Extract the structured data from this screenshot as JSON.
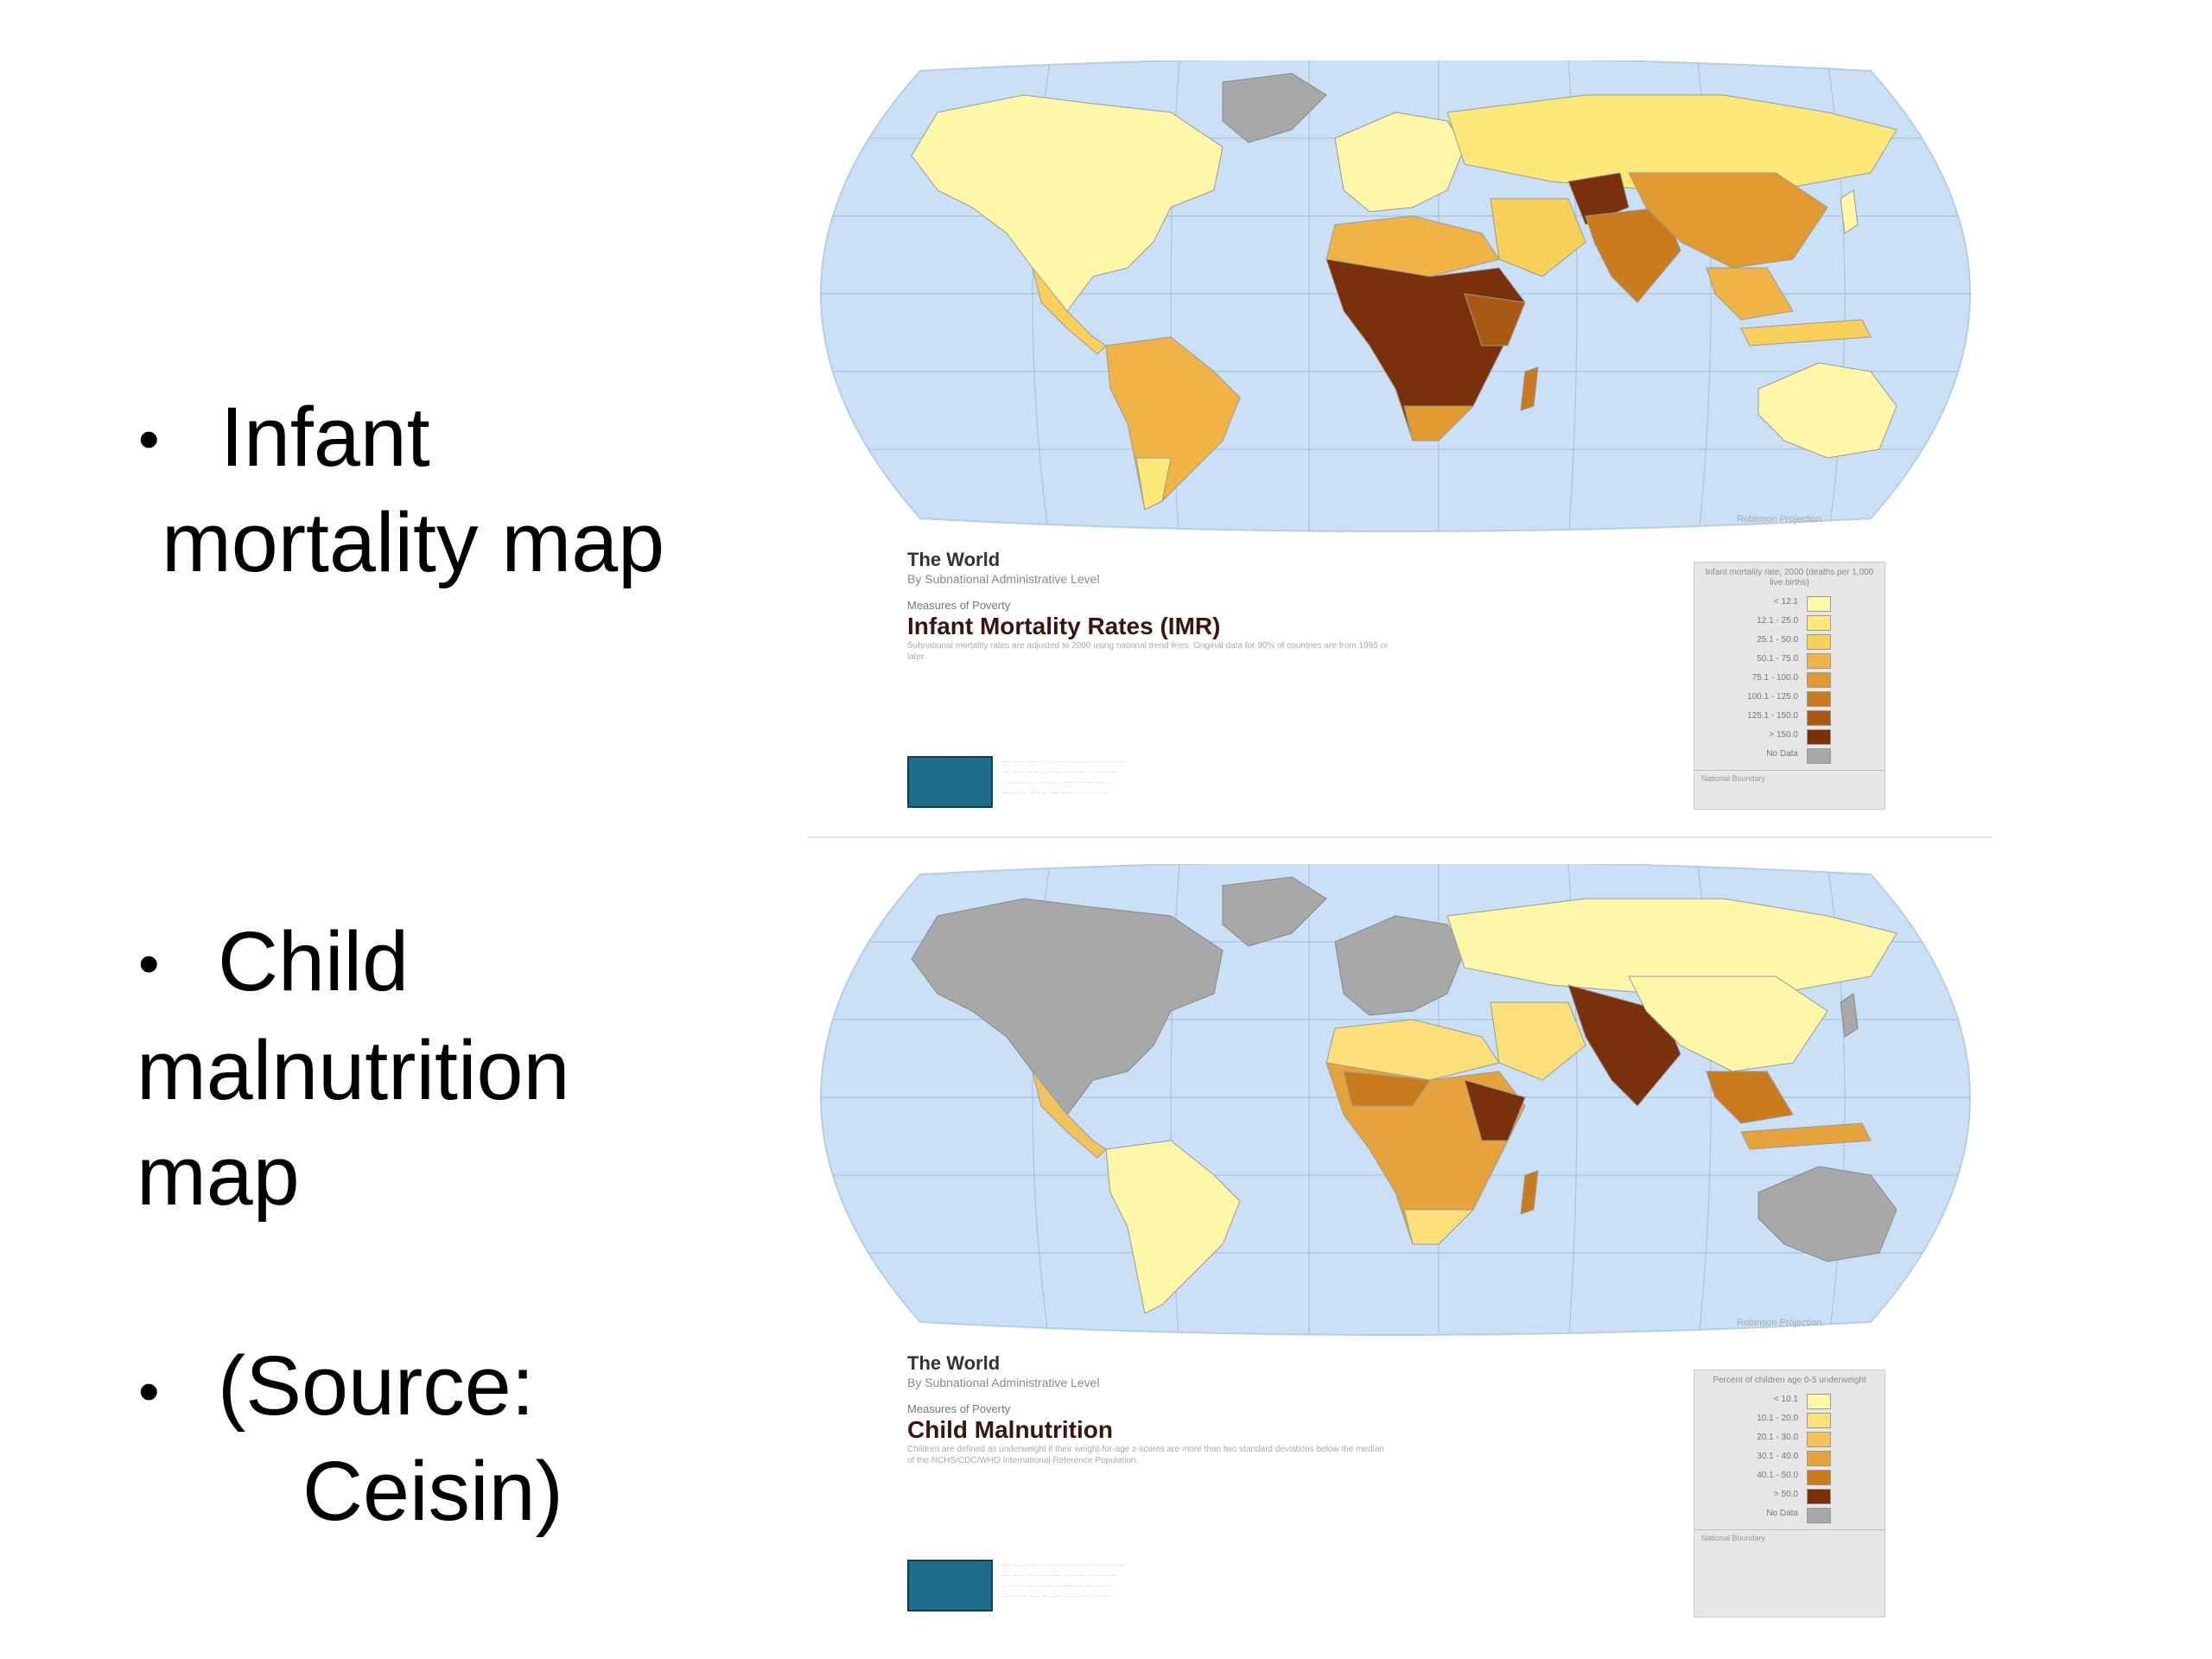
{
  "bullets": [
    {
      "line1": "Infant",
      "line2": " mortality map"
    },
    {
      "line1": "Child",
      "line2": "malnutrition",
      "line3": "map"
    },
    {
      "line1": "(Source:",
      "line2": "Ceisin)"
    }
  ],
  "maps": [
    {
      "projection": "Robinson Projection",
      "region": "The World",
      "subtitle": "By Subnational Administrative Level",
      "measure": "Measures of Poverty",
      "name": "Infant Mortality Rates (IMR)",
      "note": "Subnational mortality rates are adjusted to 2000 using national trend lines. Original data for 90% of countries are from 1995 or later.",
      "legend_title": "Infant mortality rate, 2000 (deaths per 1,000 live births)",
      "legend_items": [
        {
          "label": "< 12.1",
          "color": "#fff7a8"
        },
        {
          "label": "12.1 - 25.0",
          "color": "#fde97a"
        },
        {
          "label": "25.1 - 50.0",
          "color": "#f8d05a"
        },
        {
          "label": "50.1 - 75.0",
          "color": "#efb445"
        },
        {
          "label": "75.1 - 100.0",
          "color": "#e09a2f"
        },
        {
          "label": "100.1 - 125.0",
          "color": "#c97b1d"
        },
        {
          "label": "125.1 - 150.0",
          "color": "#a95913"
        },
        {
          "label": "> 150.0",
          "color": "#7a300a"
        },
        {
          "label": "No Data",
          "color": "#a8a8a8"
        }
      ],
      "legend_footer": "National Boundary",
      "colors": {
        "ocean": "#c9e0f7",
        "nodata": "#a8a8a8",
        "low": "#fff7a8",
        "mid": "#f1b94a",
        "high": "#c97b1d",
        "veryhigh": "#7a300a"
      }
    },
    {
      "projection": "Robinson Projection",
      "region": "The World",
      "subtitle": "By Subnational Administrative Level",
      "measure": "Measures of Poverty",
      "name": "Child Malnutrition",
      "note": "Children are defined as underweight if their weight-for-age z-scores are more than two standard deviations below the median of the NCHS/CDC/WHO International Reference Population.",
      "legend_title": "Percent of children age 0-5 underweight",
      "legend_items": [
        {
          "label": "< 10.1",
          "color": "#fff7a8"
        },
        {
          "label": "10.1 - 20.0",
          "color": "#fbe07a"
        },
        {
          "label": "20.1 - 30.0",
          "color": "#f3c25a"
        },
        {
          "label": "30.1 - 40.0",
          "color": "#e6a23b"
        },
        {
          "label": "40.1 - 50.0",
          "color": "#c97b1d"
        },
        {
          "label": "> 50.0",
          "color": "#7a300a"
        },
        {
          "label": "No Data",
          "color": "#a8a8a8"
        }
      ],
      "legend_footer": "National Boundary",
      "colors": {
        "ocean": "#c9e0f7",
        "nodata": "#a8a8a8",
        "low": "#fff7a8",
        "mid": "#f1b94a",
        "high": "#c97b1d",
        "veryhigh": "#7a300a"
      }
    }
  ]
}
